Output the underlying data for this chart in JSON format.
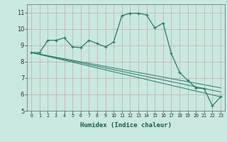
{
  "title": "",
  "xlabel": "Humidex (Indice chaleur)",
  "bg_color": "#c8e8e0",
  "grid_color": "#c8a8a8",
  "line_color": "#2a7a6a",
  "xlim": [
    -0.5,
    23.5
  ],
  "ylim": [
    5,
    11.5
  ],
  "xtick_labels": [
    "0",
    "1",
    "2",
    "3",
    "4",
    "5",
    "6",
    "7",
    "8",
    "9",
    "10",
    "11",
    "12",
    "13",
    "14",
    "15",
    "16",
    "17",
    "18",
    "19",
    "20",
    "21",
    "22",
    "23"
  ],
  "ytick_labels": [
    "5",
    "6",
    "7",
    "8",
    "9",
    "10",
    "11"
  ],
  "curve1_x": [
    0,
    1,
    2,
    3,
    4,
    5,
    6,
    7,
    8,
    9,
    10,
    11,
    12,
    13,
    14,
    15,
    16,
    17,
    18,
    19,
    20,
    21,
    22,
    23
  ],
  "curve1_y": [
    8.55,
    8.55,
    9.3,
    9.3,
    9.45,
    8.9,
    8.85,
    9.3,
    9.1,
    8.9,
    9.2,
    10.8,
    10.95,
    10.95,
    10.85,
    10.05,
    10.35,
    8.5,
    7.35,
    6.85,
    6.4,
    6.35,
    5.3,
    5.85
  ],
  "line2_y_end": 6.15,
  "line3_y_end": 5.85,
  "line4_y_end": 6.4,
  "lines_y_start": 8.55
}
